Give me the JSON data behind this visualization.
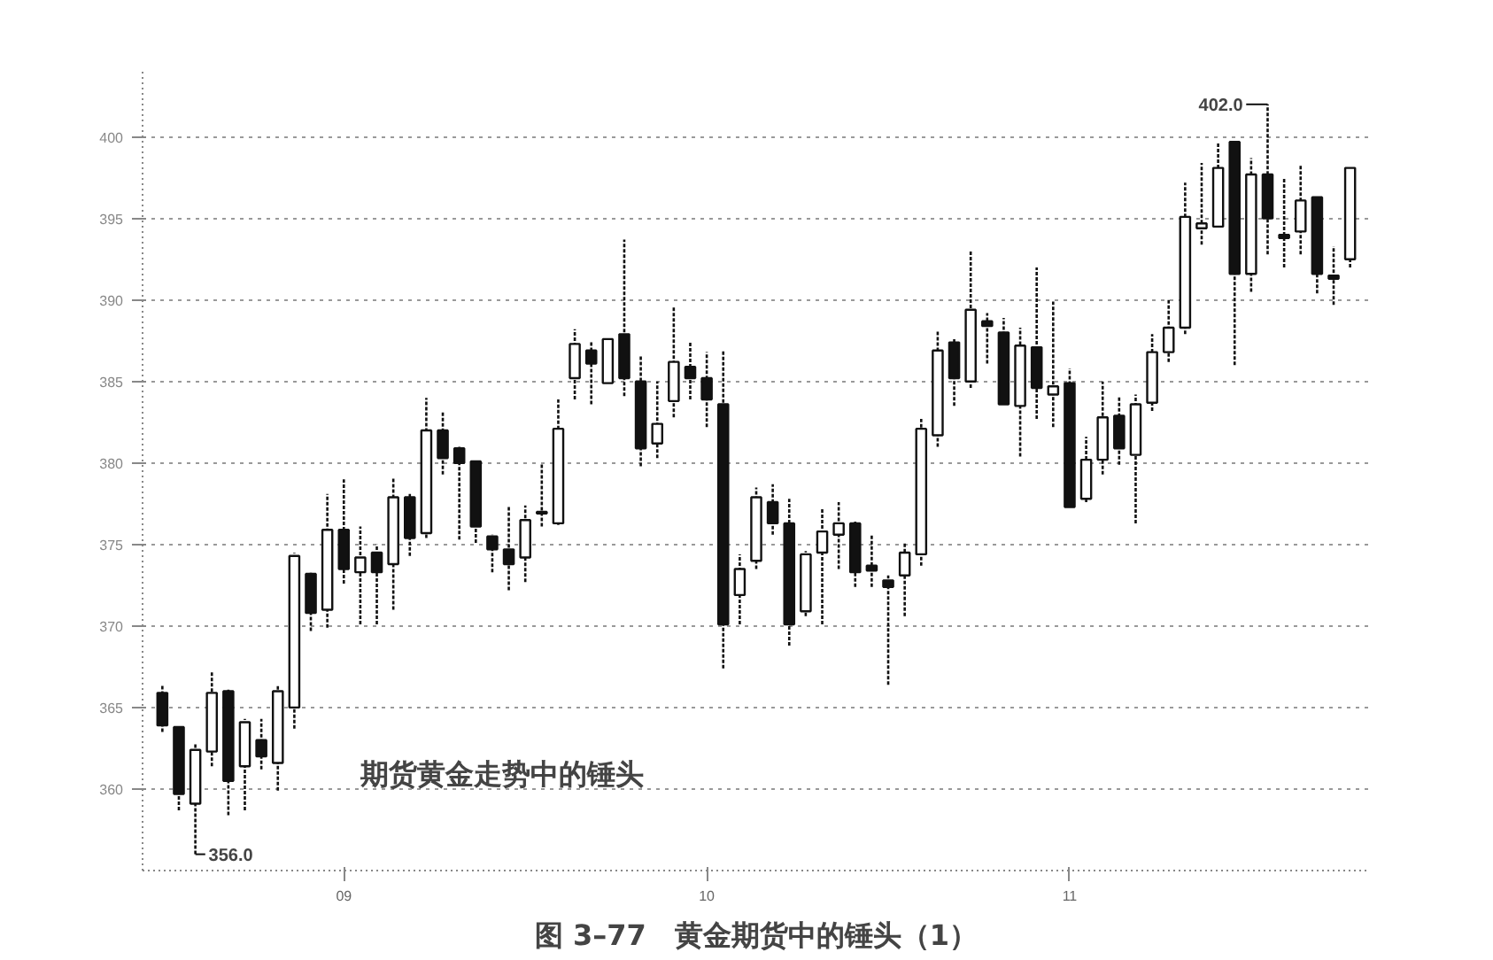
{
  "chart_data": {
    "type": "candlestick",
    "title": "图 3–77　黄金期货中的锤头（1）",
    "categories": [
      null,
      null,
      null,
      null,
      null,
      null,
      null,
      null,
      null,
      null,
      null,
      "09",
      null,
      null,
      null,
      null,
      null,
      null,
      null,
      null,
      null,
      null,
      null,
      null,
      null,
      null,
      null,
      null,
      null,
      null,
      null,
      null,
      null,
      "10",
      null,
      null,
      null,
      null,
      null,
      null,
      null,
      null,
      null,
      null,
      null,
      null,
      null,
      null,
      null,
      null,
      null,
      null,
      null,
      null,
      null,
      "11",
      null,
      null,
      null,
      null,
      null,
      null,
      null,
      null,
      null,
      null,
      null,
      null,
      null,
      null,
      null,
      null,
      null
    ],
    "ohlc": [
      [
        365.9,
        366.4,
        363.5,
        363.9
      ],
      [
        363.8,
        363.9,
        358.7,
        359.7
      ],
      [
        359.1,
        362.8,
        356.0,
        362.4
      ],
      [
        362.3,
        367.2,
        361.4,
        365.9
      ],
      [
        366.0,
        366.1,
        358.4,
        360.5
      ],
      [
        361.4,
        364.3,
        358.7,
        364.1
      ],
      [
        363.0,
        364.3,
        361.2,
        362.0
      ],
      [
        361.6,
        366.4,
        359.9,
        366.0
      ],
      [
        365.0,
        374.5,
        363.7,
        374.3
      ],
      [
        373.2,
        373.3,
        369.7,
        370.8
      ],
      [
        371.0,
        378.1,
        369.9,
        375.9
      ],
      [
        375.9,
        379.0,
        372.6,
        373.5
      ],
      [
        373.3,
        376.1,
        370.1,
        374.2
      ],
      [
        374.5,
        375.0,
        370.1,
        373.3
      ],
      [
        373.8,
        379.1,
        371.0,
        377.9
      ],
      [
        377.9,
        378.1,
        374.3,
        375.4
      ],
      [
        375.7,
        384.0,
        375.4,
        382.0
      ],
      [
        382.0,
        383.1,
        379.3,
        380.3
      ],
      [
        380.9,
        381.0,
        375.3,
        380.0
      ],
      [
        380.1,
        380.1,
        375.1,
        376.1
      ],
      [
        375.5,
        375.6,
        373.3,
        374.7
      ],
      [
        374.7,
        377.4,
        372.2,
        373.8
      ],
      [
        374.2,
        377.4,
        372.7,
        376.5
      ],
      [
        376.9,
        380.0,
        376.1,
        377.0
      ],
      [
        376.3,
        383.9,
        376.2,
        382.1
      ],
      [
        385.2,
        388.2,
        383.9,
        387.3
      ],
      [
        386.9,
        387.4,
        383.6,
        386.1
      ],
      [
        384.9,
        387.6,
        384.9,
        387.6
      ],
      [
        387.9,
        393.7,
        384.1,
        385.2
      ],
      [
        385.0,
        386.6,
        379.8,
        380.9
      ],
      [
        381.2,
        385.0,
        380.3,
        382.4
      ],
      [
        383.8,
        389.6,
        382.8,
        386.2
      ],
      [
        385.9,
        387.4,
        383.9,
        385.2
      ],
      [
        385.2,
        386.8,
        382.2,
        383.9
      ],
      [
        383.6,
        386.9,
        367.4,
        370.1
      ],
      [
        371.9,
        374.4,
        370.1,
        373.5
      ],
      [
        374.0,
        378.5,
        373.5,
        377.9
      ],
      [
        377.6,
        378.7,
        375.6,
        376.3
      ],
      [
        376.3,
        377.8,
        368.8,
        370.1
      ],
      [
        370.9,
        374.6,
        370.6,
        374.4
      ],
      [
        374.5,
        377.2,
        370.1,
        375.8
      ],
      [
        375.6,
        377.6,
        373.5,
        376.3
      ],
      [
        376.3,
        376.4,
        372.4,
        373.3
      ],
      [
        373.7,
        375.6,
        372.4,
        373.4
      ],
      [
        372.8,
        373.1,
        366.4,
        372.4
      ],
      [
        373.1,
        375.1,
        370.6,
        374.5
      ],
      [
        374.4,
        382.7,
        373.7,
        382.1
      ],
      [
        381.7,
        388.1,
        381.0,
        386.9
      ],
      [
        387.4,
        387.6,
        383.5,
        385.2
      ],
      [
        385.0,
        393.0,
        384.6,
        389.4
      ],
      [
        388.7,
        389.2,
        386.1,
        388.4
      ],
      [
        388.0,
        388.9,
        383.6,
        383.6
      ],
      [
        383.5,
        388.3,
        380.4,
        387.2
      ],
      [
        387.1,
        392.0,
        382.7,
        384.6
      ],
      [
        384.2,
        389.9,
        382.2,
        384.7
      ],
      [
        384.9,
        385.8,
        377.3,
        377.3
      ],
      [
        377.8,
        381.6,
        377.6,
        380.2
      ],
      [
        380.2,
        385.0,
        379.3,
        382.8
      ],
      [
        382.9,
        384.1,
        379.9,
        380.9
      ],
      [
        380.5,
        384.2,
        376.3,
        383.6
      ],
      [
        383.7,
        387.9,
        383.2,
        386.8
      ],
      [
        386.8,
        390.0,
        386.2,
        388.3
      ],
      [
        388.3,
        397.2,
        387.9,
        395.1
      ],
      [
        394.4,
        398.4,
        393.4,
        394.7
      ],
      [
        394.5,
        399.6,
        394.5,
        398.1
      ],
      [
        399.7,
        399.7,
        386.0,
        391.6
      ],
      [
        391.6,
        398.7,
        390.5,
        397.7
      ],
      [
        397.7,
        402.0,
        392.8,
        395.0
      ],
      [
        394.0,
        397.5,
        392.0,
        393.8
      ],
      [
        394.2,
        398.3,
        392.8,
        396.1
      ],
      [
        396.3,
        396.3,
        390.4,
        391.6
      ],
      [
        391.5,
        393.3,
        389.7,
        391.3
      ],
      [
        392.5,
        398.1,
        392.0,
        398.1
      ]
    ],
    "ylim": [
      355,
      404
    ],
    "yticks": [
      360,
      365,
      370,
      375,
      380,
      385,
      390,
      395,
      400
    ],
    "grid": "y",
    "annotations": [
      "402.0",
      "356.0",
      "期货黄金走势中的锤头"
    ]
  }
}
